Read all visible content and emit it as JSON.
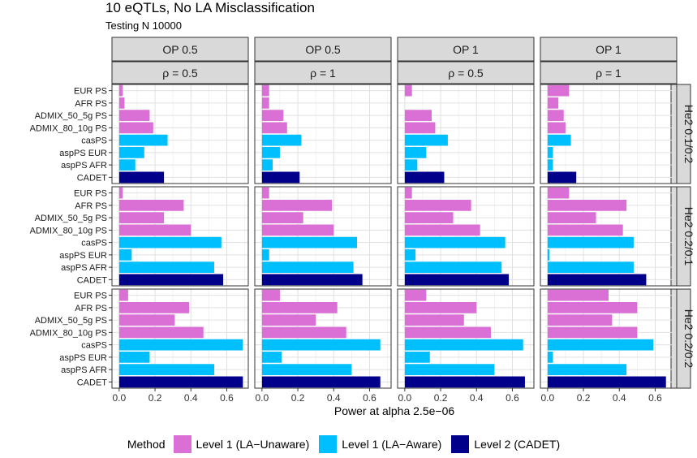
{
  "title": "10 eQTLs, No LA Misclassification",
  "subtitle": "Testing N 10000",
  "legend": {
    "title": "Method",
    "items": [
      {
        "label": "Level 1 (LA−Unaware)",
        "color": "#DA70D6"
      },
      {
        "label": "Level 1 (LA−Aware)",
        "color": "#00BFFF"
      },
      {
        "label": "Level 2 (CADET)",
        "color": "#00008B"
      }
    ]
  },
  "chart_data": {
    "type": "bar",
    "orientation": "horizontal",
    "xlabel": "Power at alpha 2.5e−06",
    "xlim": [
      -0.04,
      0.72
    ],
    "xticks": [
      0.0,
      0.2,
      0.4,
      0.6
    ],
    "xtick_labels": [
      "0.0",
      "0.2",
      "0.4",
      "0.6"
    ],
    "grid": true,
    "legend_position": "bottom",
    "categories": [
      "EUR PS",
      "AFR PS",
      "ADMIX_50_5g PS",
      "ADMIX_80_10g PS",
      "casPS",
      "aspPS EUR",
      "aspPS AFR",
      "CADET"
    ],
    "category_groups": [
      "Level 1 (LA−Unaware)",
      "Level 1 (LA−Unaware)",
      "Level 1 (LA−Unaware)",
      "Level 1 (LA−Unaware)",
      "Level 1 (LA−Aware)",
      "Level 1 (LA−Aware)",
      "Level 1 (LA−Aware)",
      "Level 2 (CADET)"
    ],
    "col_facets": [
      {
        "op": "OP 0.5",
        "rho": "ρ = 0.5"
      },
      {
        "op": "OP 0.5",
        "rho": "ρ = 1"
      },
      {
        "op": "OP 1",
        "rho": "ρ = 0.5"
      },
      {
        "op": "OP 1",
        "rho": "ρ = 1"
      }
    ],
    "row_facets": [
      "He2 0.1/0.2",
      "He2 0.2/0.1",
      "He2 0.2/0.2"
    ],
    "panels": [
      [
        [
          0.02,
          0.03,
          0.17,
          0.19,
          0.27,
          0.14,
          0.09,
          0.25
        ],
        [
          0.04,
          0.04,
          0.12,
          0.14,
          0.22,
          0.1,
          0.06,
          0.21
        ],
        [
          0.04,
          0.0,
          0.15,
          0.17,
          0.24,
          0.12,
          0.07,
          0.22
        ],
        [
          0.12,
          0.06,
          0.09,
          0.1,
          0.13,
          0.03,
          0.03,
          0.16
        ]
      ],
      [
        [
          0.02,
          0.36,
          0.25,
          0.4,
          0.57,
          0.07,
          0.53,
          0.58
        ],
        [
          0.04,
          0.39,
          0.23,
          0.4,
          0.53,
          0.04,
          0.51,
          0.56
        ],
        [
          0.04,
          0.37,
          0.27,
          0.42,
          0.56,
          0.06,
          0.54,
          0.58
        ],
        [
          0.12,
          0.44,
          0.27,
          0.42,
          0.48,
          0.01,
          0.48,
          0.55
        ]
      ],
      [
        [
          0.05,
          0.39,
          0.31,
          0.47,
          0.69,
          0.17,
          0.53,
          0.69
        ],
        [
          0.1,
          0.42,
          0.3,
          0.47,
          0.66,
          0.11,
          0.5,
          0.66
        ],
        [
          0.12,
          0.4,
          0.33,
          0.48,
          0.66,
          0.14,
          0.5,
          0.67
        ],
        [
          0.34,
          0.5,
          0.36,
          0.5,
          0.59,
          0.03,
          0.44,
          0.66
        ]
      ]
    ]
  }
}
